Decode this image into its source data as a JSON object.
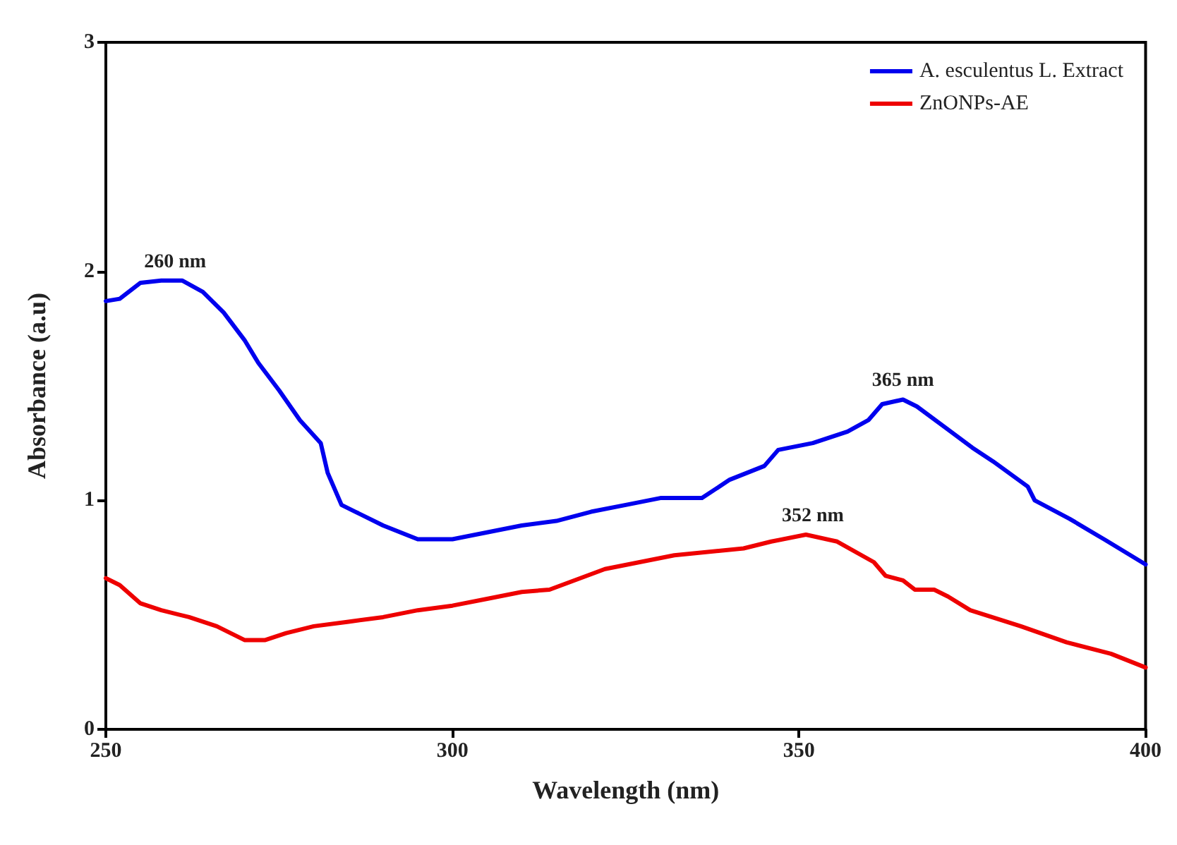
{
  "chart_data": {
    "type": "line",
    "xlabel": "Wavelength (nm)",
    "ylabel": "Absorbance (a.u)",
    "xlim": [
      250,
      400
    ],
    "xticks": [
      250,
      300,
      350,
      400
    ],
    "ylim": [
      0,
      3
    ],
    "yticks": [
      0,
      1,
      2,
      3
    ],
    "grid": false,
    "legend": "top right",
    "marker": "none",
    "line_style": "solid",
    "series": [
      {
        "name": "A. esculentus L. Extract",
        "color": "#0000ee",
        "x": [
          250,
          252,
          255,
          258,
          261,
          264,
          267,
          270,
          272,
          275,
          278,
          281,
          282,
          284,
          286,
          290,
          295,
          300,
          305,
          310,
          315,
          320,
          325,
          330,
          336,
          340,
          345,
          347,
          352,
          357,
          360,
          362,
          365,
          367,
          371,
          375,
          378,
          383,
          384,
          389,
          394,
          400
        ],
        "values": [
          1.87,
          1.88,
          1.95,
          1.96,
          1.96,
          1.91,
          1.82,
          1.7,
          1.6,
          1.48,
          1.35,
          1.25,
          1.12,
          0.98,
          0.95,
          0.89,
          0.83,
          0.83,
          0.86,
          0.89,
          0.91,
          0.95,
          0.98,
          1.01,
          1.01,
          1.09,
          1.15,
          1.22,
          1.25,
          1.3,
          1.35,
          1.42,
          1.44,
          1.41,
          1.32,
          1.23,
          1.17,
          1.06,
          1.0,
          0.92,
          0.83,
          0.72
        ]
      },
      {
        "name": "ZnONPs-AE",
        "color": "#ee0000",
        "x": [
          250,
          252,
          255,
          258,
          262,
          266,
          268,
          270,
          273,
          276,
          280,
          285,
          290,
          295,
          300,
          305,
          310,
          314,
          322,
          332,
          342,
          346,
          351,
          355.5,
          360.8,
          362.5,
          365,
          366.7,
          369.5,
          371.5,
          374.7,
          382,
          388.6,
          395,
          400
        ],
        "values": [
          0.66,
          0.63,
          0.55,
          0.52,
          0.49,
          0.45,
          0.42,
          0.39,
          0.39,
          0.42,
          0.45,
          0.47,
          0.49,
          0.52,
          0.54,
          0.57,
          0.6,
          0.61,
          0.7,
          0.76,
          0.79,
          0.82,
          0.85,
          0.82,
          0.73,
          0.67,
          0.65,
          0.61,
          0.61,
          0.58,
          0.52,
          0.45,
          0.38,
          0.33,
          0.27
        ]
      }
    ],
    "annotations": [
      {
        "text": "260 nm",
        "x": 260,
        "y": 1.96
      },
      {
        "text": "365 nm",
        "x": 365,
        "y": 1.44
      },
      {
        "text": "352 nm",
        "x": 352,
        "y": 0.85
      }
    ]
  }
}
